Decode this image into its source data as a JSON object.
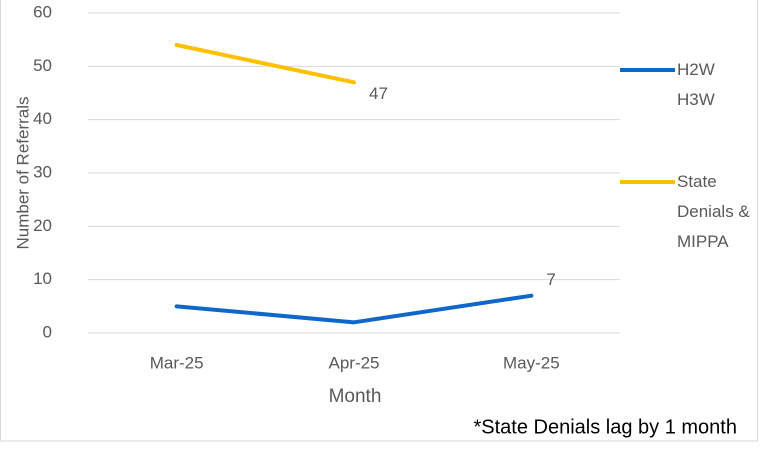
{
  "chart_data": {
    "type": "line",
    "categories": [
      "Mar-25",
      "Apr-25",
      "May-25"
    ],
    "series": [
      {
        "name": "H2W H3W",
        "color": "#0f67c9",
        "values": [
          5,
          2,
          7
        ]
      },
      {
        "name": "State Denials & MIPPA",
        "color": "#ffc000",
        "values": [
          54,
          47,
          null
        ]
      }
    ],
    "x_label": "Month",
    "y_label": "Number of Referrals",
    "annotation": "*State Denials lag by 1 month",
    "ylim": [
      0,
      60
    ],
    "yticks": [
      0,
      10,
      20,
      30,
      40,
      50,
      60
    ],
    "grid": true,
    "legend": "right"
  }
}
